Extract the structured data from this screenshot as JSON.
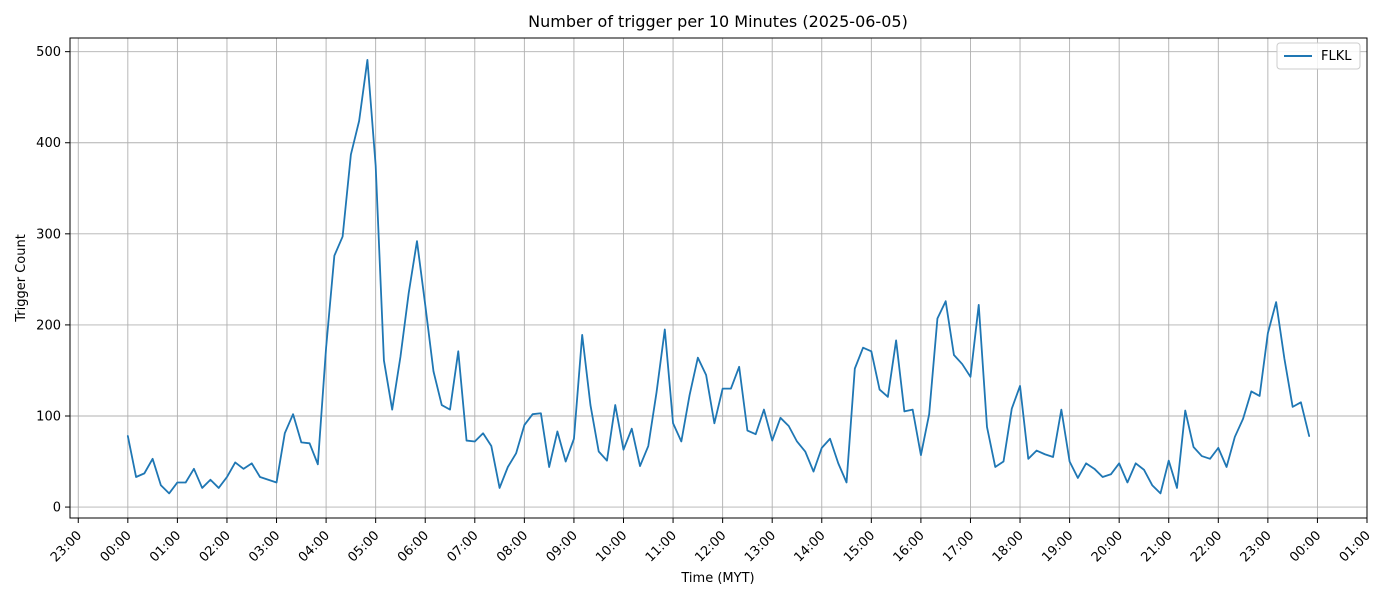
{
  "chart_data": {
    "type": "line",
    "title": "Number of trigger per 10 Minutes (2025-06-05)",
    "xlabel": "Time (MYT)",
    "ylabel": "Trigger Count",
    "x_ticks": [
      "23:00",
      "00:00",
      "01:00",
      "02:00",
      "03:00",
      "04:00",
      "05:00",
      "06:00",
      "07:00",
      "08:00",
      "09:00",
      "10:00",
      "11:00",
      "12:00",
      "13:00",
      "14:00",
      "15:00",
      "16:00",
      "17:00",
      "18:00",
      "19:00",
      "20:00",
      "21:00",
      "22:00",
      "23:00",
      "00:00",
      "01:00"
    ],
    "xlim": [
      "2025-06-04 22:50",
      "2025-06-06 01:00"
    ],
    "ylim": [
      -12,
      515
    ],
    "y_ticks": [
      0,
      100,
      200,
      300,
      400,
      500
    ],
    "grid": true,
    "legend_position": "top-right",
    "series": [
      {
        "name": "FLKL",
        "color": "#1f77b4",
        "x_start": "2025-06-05 00:00",
        "x_step_minutes": 10,
        "values": [
          78,
          33,
          37,
          53,
          24,
          15,
          27,
          27,
          42,
          21,
          30,
          21,
          33,
          49,
          42,
          48,
          33,
          30,
          27,
          81,
          102,
          71,
          70,
          47,
          175,
          276,
          297,
          387,
          424,
          491,
          375,
          161,
          107,
          165,
          235,
          292,
          222,
          149,
          112,
          107,
          171,
          73,
          72,
          81,
          67,
          21,
          44,
          59,
          90,
          102,
          103,
          44,
          83,
          50,
          75,
          189,
          112,
          61,
          51,
          112,
          63,
          86,
          45,
          67,
          126,
          195,
          92,
          72,
          123,
          164,
          145,
          92,
          130,
          130,
          154,
          84,
          80,
          107,
          73,
          98,
          89,
          72,
          61,
          39,
          65,
          75,
          48,
          27,
          152,
          175,
          171,
          129,
          121,
          183,
          105,
          107,
          57,
          102,
          207,
          226,
          167,
          157,
          143,
          222,
          88,
          44,
          50,
          108,
          133,
          53,
          62,
          58,
          55,
          107,
          50,
          32,
          48,
          42,
          33,
          36,
          48,
          27,
          48,
          41,
          24,
          15,
          51,
          21,
          106,
          66,
          56,
          53,
          65,
          44,
          77,
          97,
          127,
          122,
          191,
          225,
          163,
          110,
          115,
          78
        ]
      }
    ]
  }
}
